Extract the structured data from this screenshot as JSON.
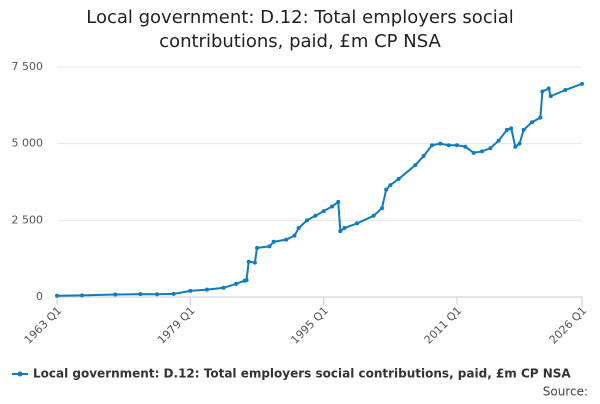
{
  "chart_data": {
    "type": "line",
    "title": "Local government: D.12: Total employers social contributions, paid, £m CP NSA",
    "source": "Source:",
    "x": [
      1963,
      1966,
      1970,
      1973,
      1975,
      1977,
      1979,
      1981,
      1983,
      1984.5,
      1985.5,
      1985.75,
      1986,
      1986.75,
      1987,
      1988.5,
      1989,
      1990.5,
      1991.5,
      1992,
      1993,
      1994,
      1995,
      1996,
      1996.75,
      1997,
      1997.5,
      1999,
      2001,
      2002,
      2002.5,
      2003,
      2004,
      2006,
      2007,
      2008,
      2009,
      2010,
      2011,
      2012,
      2013,
      2014,
      2015,
      2016,
      2017,
      2017.5,
      2018,
      2018.5,
      2019,
      2020,
      2021,
      2021.25,
      2022,
      2022.25,
      2024,
      2026
    ],
    "series": [
      {
        "name": "Local government: D.12: Total employers social contributions, paid, £m CP NSA",
        "color": "#0f7cbf",
        "values": [
          40,
          55,
          80,
          95,
          90,
          100,
          200,
          240,
          300,
          430,
          530,
          550,
          1150,
          1120,
          1600,
          1650,
          1800,
          1870,
          2000,
          2250,
          2500,
          2650,
          2800,
          2950,
          3100,
          2150,
          2250,
          2400,
          2650,
          2900,
          3500,
          3650,
          3850,
          4300,
          4600,
          4950,
          5000,
          4950,
          4950,
          4900,
          4700,
          4750,
          4850,
          5100,
          5450,
          5500,
          4900,
          5000,
          5450,
          5700,
          5850,
          6700,
          6800,
          6550,
          6750,
          6950
        ]
      }
    ],
    "xlim": [
      1963,
      2026
    ],
    "xticks": [
      {
        "value": 1963,
        "label": "1963 Q1"
      },
      {
        "value": 1979,
        "label": "1979 Q1"
      },
      {
        "value": 1995,
        "label": "1995 Q1"
      },
      {
        "value": 2011,
        "label": "2011 Q1"
      },
      {
        "value": 2026,
        "label": "2026 Q1"
      }
    ],
    "ylim": [
      0,
      7500
    ],
    "yticks": [
      0,
      {
        "value": 2500,
        "label": "2 500"
      },
      {
        "value": 5000,
        "label": "5 000"
      },
      {
        "value": 7500,
        "label": "7 500"
      }
    ],
    "grid": true
  }
}
